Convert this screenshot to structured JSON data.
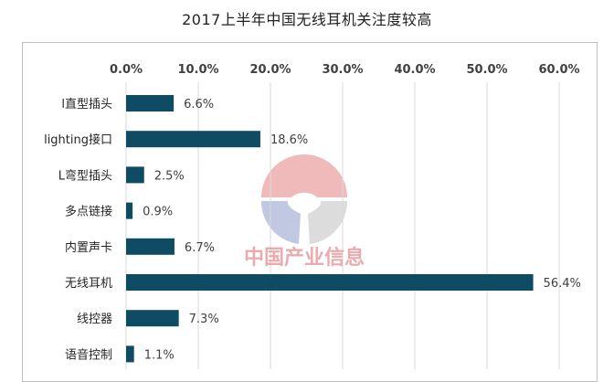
{
  "title": "2017上半年中国无线耳机关注度较高",
  "watermark": {
    "text": "中国产业信息",
    "colors": [
      "#e06666",
      "#8e9ac8",
      "#c0c0c0"
    ]
  },
  "colors": {
    "bar": "#0f4c63",
    "grid": "#d9d9d9",
    "frame": "#bfbfbf"
  },
  "chart_data": {
    "type": "bar",
    "orientation": "horizontal",
    "title": "2017上半年中国无线耳机关注度较高",
    "categories": [
      "l直型插头",
      "lighting接口",
      "L弯型插头",
      "多点链接",
      "内置声卡",
      "无线耳机",
      "线控器",
      "语音控制"
    ],
    "values": [
      6.6,
      18.6,
      2.5,
      0.9,
      6.7,
      56.4,
      7.3,
      1.1
    ],
    "value_labels": [
      "6.6%",
      "18.6%",
      "2.5%",
      "0.9%",
      "6.7%",
      "56.4%",
      "7.3%",
      "1.1%"
    ],
    "x_axis": {
      "position": "top",
      "ticks": [
        "0.0%",
        "10.0%",
        "20.0%",
        "30.0%",
        "40.0%",
        "50.0%",
        "60.0%"
      ],
      "xlim": [
        0,
        60
      ]
    },
    "grid": true,
    "legend": "none"
  }
}
